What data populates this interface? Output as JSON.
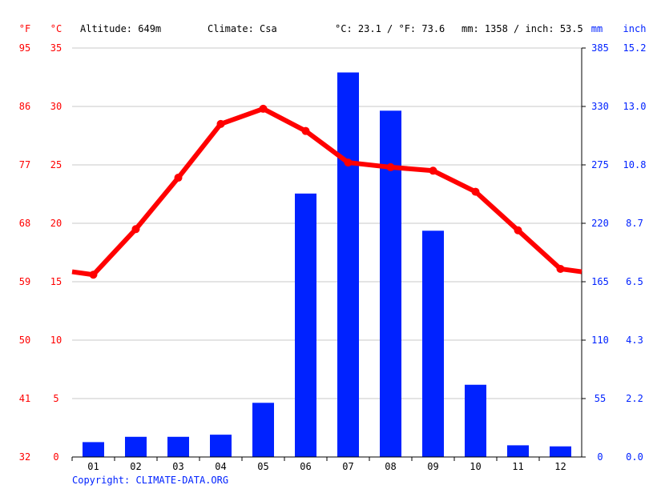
{
  "header": {
    "unit_f": "°F",
    "unit_c": "°C",
    "altitude": "Altitude: 649m",
    "climate": "Climate: Csa",
    "temp_avg": "°C: 23.1 / °F: 73.6",
    "precip_total": "mm: 1358 / inch: 53.5",
    "unit_mm": "mm",
    "unit_inch": "inch"
  },
  "copyright": "Copyright: CLIMATE-DATA.ORG",
  "colors": {
    "temperature": "#ff0000",
    "precipitation": "#0022ff",
    "grid": "#c8c8c8",
    "axis_text_left": "#ff0000",
    "axis_text_right": "#0022ff"
  },
  "chart_data": {
    "type": "bar",
    "categories": [
      "01",
      "02",
      "03",
      "04",
      "05",
      "06",
      "07",
      "08",
      "09",
      "10",
      "11",
      "12"
    ],
    "series": [
      {
        "type": "bar",
        "axis": "right",
        "unit": "mm",
        "values": [
          14,
          19,
          19,
          21,
          51,
          248,
          362,
          326,
          213,
          68,
          11,
          10
        ]
      },
      {
        "type": "line",
        "axis": "left",
        "unit": "°C",
        "values": [
          15.6,
          19.5,
          23.9,
          28.5,
          29.8,
          27.9,
          25.2,
          24.8,
          24.5,
          22.7,
          19.4,
          16.1
        ]
      }
    ],
    "y_left_c": {
      "ticks": [
        "35",
        "30",
        "25",
        "20",
        "15",
        "10",
        "5",
        "0"
      ],
      "range": [
        0,
        35
      ]
    },
    "y_left_f": {
      "ticks": [
        "95",
        "86",
        "77",
        "68",
        "59",
        "50",
        "41",
        "32"
      ]
    },
    "y_right_mm": {
      "ticks": [
        "385",
        "330",
        "275",
        "220",
        "165",
        "110",
        "55",
        "0"
      ],
      "range": [
        0,
        385
      ]
    },
    "y_right_inch": {
      "ticks": [
        "15.2",
        "13.0",
        "10.8",
        "8.7",
        "6.5",
        "4.3",
        "2.2",
        "0.0"
      ]
    },
    "grid": true
  }
}
